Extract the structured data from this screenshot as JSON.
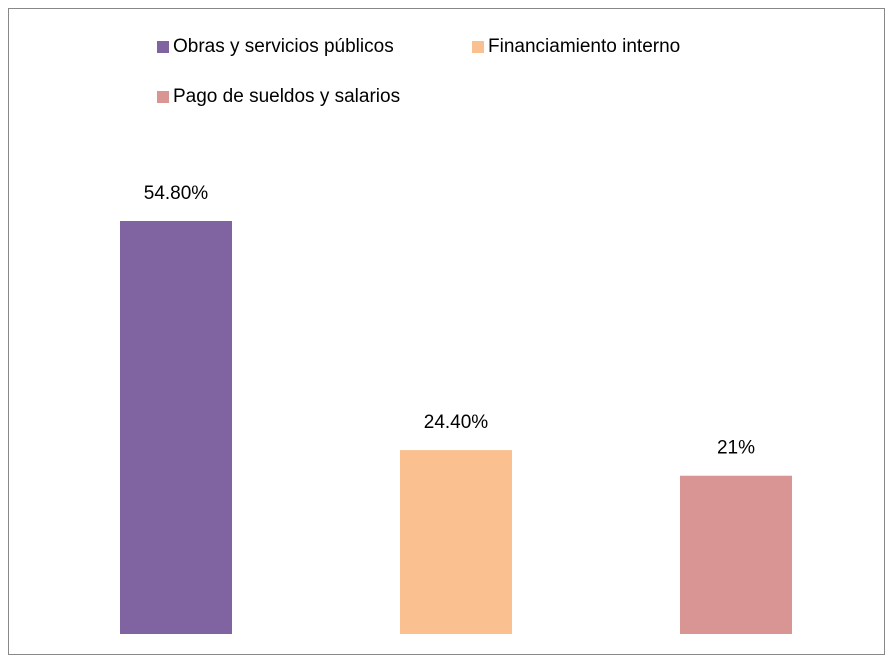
{
  "chart_data": {
    "type": "bar",
    "categories": [
      null
    ],
    "series": [
      {
        "name": "Obras y servicios públicos",
        "color": "#8064a2",
        "values": [
          54.8
        ],
        "value_labels": [
          "54.80%"
        ]
      },
      {
        "name": "Financiamiento interno",
        "color": "#fac090",
        "values": [
          24.4
        ],
        "value_labels": [
          "24.40%"
        ]
      },
      {
        "name": "Pago de sueldos y salarios",
        "color": "#d99594",
        "values": [
          21
        ],
        "value_labels": [
          "21%"
        ]
      }
    ],
    "legend": "top"
  }
}
